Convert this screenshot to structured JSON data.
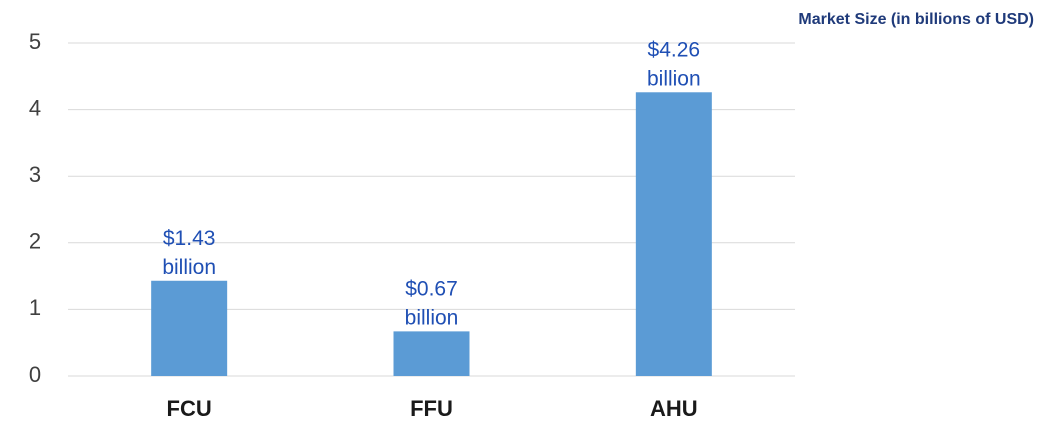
{
  "chart_data": {
    "type": "bar",
    "title": "Market Size (in billions of USD)",
    "categories": [
      "FCU",
      "FFU",
      "AHU"
    ],
    "values": [
      1.43,
      0.67,
      4.26
    ],
    "value_labels": [
      "$1.43 billion",
      "$0.67 billion",
      "$4.26 billion"
    ],
    "color": "#5b9bd5",
    "ylim": [
      0,
      5
    ],
    "yticks": [
      0,
      1,
      2,
      3,
      4,
      5
    ],
    "grid": true
  }
}
